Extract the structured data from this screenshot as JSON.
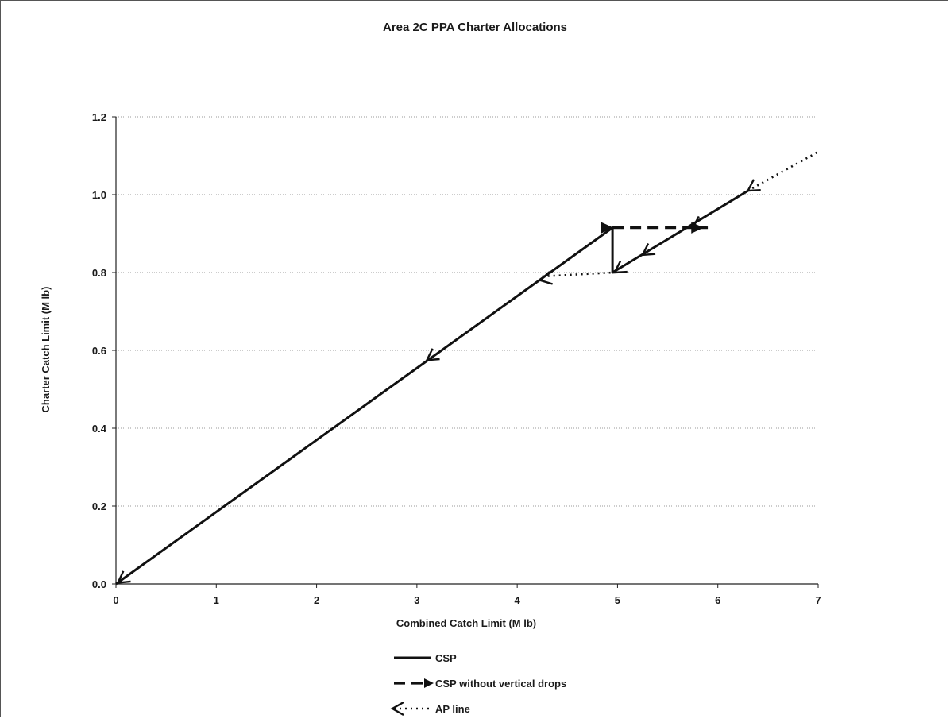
{
  "chart_data": {
    "type": "line",
    "title": "Area 2C PPA Charter Allocations",
    "xlabel": "Combined Catch Limit (M lb)",
    "ylabel": "Charter Catch Limit (M lb)",
    "xlim": [
      0,
      7
    ],
    "ylim": [
      0,
      1.2
    ],
    "x_ticks": [
      "0",
      "1",
      "2",
      "3",
      "4",
      "5",
      "6",
      "7"
    ],
    "y_ticks": [
      "0.0",
      "0.2",
      "0.4",
      "0.6",
      "0.8",
      "1.0",
      "1.2"
    ],
    "grid": "horizontal dotted",
    "legend_position": "bottom",
    "series": [
      {
        "name": "CSP",
        "style": "solid",
        "color": "#111111",
        "x": [
          0,
          4.95,
          4.95,
          6.3
        ],
        "y": [
          0,
          0.915,
          0.8,
          1.01
        ]
      },
      {
        "name": "CSP without vertical drops",
        "style": "dashed",
        "color": "#111111",
        "x": [
          4.95,
          5.9
        ],
        "y": [
          0.915,
          0.915
        ]
      },
      {
        "name": "AP line",
        "style": "dotted",
        "color": "#111111",
        "x": [
          4.25,
          4.95,
          6.3,
          7.0
        ],
        "y": [
          0.79,
          0.8,
          1.01,
          1.11
        ]
      }
    ],
    "arrows": [
      {
        "x": 6.3,
        "y": 1.01,
        "from_x": 6.6,
        "from_y": 1.06,
        "series": "AP line"
      },
      {
        "x": 5.75,
        "y": 0.915,
        "from_x": 6.0,
        "from_y": 0.955,
        "series": "AP line"
      },
      {
        "x": 5.25,
        "y": 0.845,
        "from_x": 5.45,
        "from_y": 0.88,
        "series": "AP line"
      },
      {
        "x": 4.97,
        "y": 0.8,
        "from_x": 5.15,
        "from_y": 0.83,
        "series": "AP line"
      },
      {
        "x": 4.23,
        "y": 0.78,
        "from_x": 4.4,
        "from_y": 0.79,
        "series": "AP line"
      },
      {
        "x": 3.1,
        "y": 0.575,
        "from_x": 3.3,
        "from_y": 0.61,
        "series": "AP line"
      },
      {
        "x": 0.02,
        "y": 0.003,
        "from_x": 0.25,
        "from_y": 0.045,
        "series": "AP line"
      },
      {
        "x": 4.95,
        "y": 0.915,
        "from_x": 4.7,
        "from_y": 0.915,
        "series": "CSP without vertical drops"
      },
      {
        "x": 5.85,
        "y": 0.915,
        "from_x": 5.6,
        "from_y": 0.915,
        "series": "CSP without vertical drops"
      }
    ]
  }
}
